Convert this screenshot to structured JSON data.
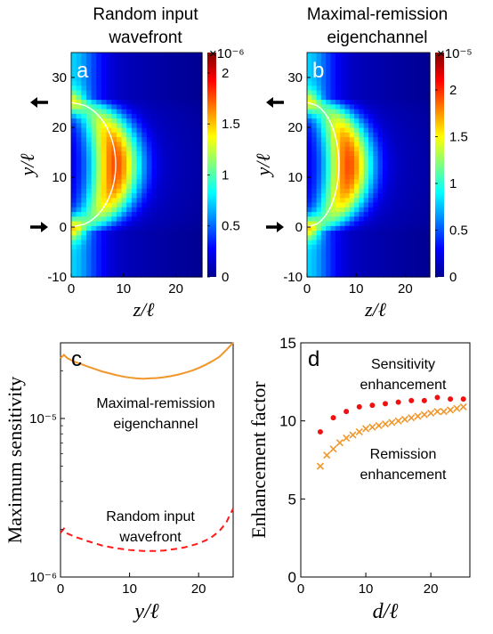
{
  "chart_data": [
    {
      "id": "a",
      "type": "heatmap",
      "panel_label": "a",
      "title": "Random input wavefront",
      "title_lines": [
        "Random input",
        "wavefront"
      ],
      "xlabel": "z/ℓ",
      "ylabel": "y/ℓ",
      "xlim": [
        0,
        25
      ],
      "ylim": [
        -10,
        35
      ],
      "xticks": [
        0,
        10,
        20
      ],
      "yticks": [
        -10,
        0,
        10,
        20,
        30
      ],
      "source_y": 0,
      "detector_y": 25,
      "colorbar": {
        "min": 0,
        "max": 2.2,
        "ticks": [
          0,
          0.5,
          1,
          1.5,
          2
        ],
        "exponent_label": "×10⁻⁶"
      },
      "contour": {
        "z_max": 8.5,
        "y_center": 12.5,
        "y_half": 12.5,
        "style": "solid"
      }
    },
    {
      "id": "b",
      "type": "heatmap",
      "panel_label": "b",
      "title": "Maximal-remission eigenchannel",
      "title_lines": [
        "Maximal-remission",
        "eigenchannel"
      ],
      "xlabel": "z/ℓ",
      "ylabel": "y/ℓ",
      "xlim": [
        0,
        25
      ],
      "ylim": [
        -10,
        35
      ],
      "xticks": [
        0,
        10,
        20
      ],
      "yticks": [
        -10,
        0,
        10,
        20,
        30
      ],
      "source_y": 0,
      "detector_y": 25,
      "colorbar": {
        "min": 0,
        "max": 2.4,
        "ticks": [
          0,
          0.5,
          1,
          1.5,
          2
        ],
        "exponent_label": "×10⁻⁵"
      },
      "contour": {
        "z_max": 6.5,
        "y_center": 12.5,
        "y_half": 12.5,
        "style": "solid"
      }
    },
    {
      "id": "c",
      "type": "line",
      "panel_label": "c",
      "xlabel": "y/ℓ",
      "ylabel": "Maximum sensitivity",
      "xlim": [
        0,
        25
      ],
      "ylim": [
        1e-06,
        3e-05
      ],
      "log_y": true,
      "xticks": [
        0,
        10,
        20
      ],
      "ytick_labels": [
        "10⁻⁶",
        "10⁻⁵"
      ],
      "yticks": [
        1e-06,
        1e-05
      ],
      "series": [
        {
          "name": "Maximal-remission eigenchannel",
          "label_lines": [
            "Maximal-remission",
            "eigenchannel"
          ],
          "color": "#f0962a",
          "dash": "solid",
          "x": [
            0,
            0.5,
            1,
            2,
            3,
            4,
            5,
            6,
            7,
            8,
            9,
            10,
            11,
            12,
            13,
            14,
            15,
            16,
            17,
            18,
            19,
            20,
            21,
            22,
            23,
            24,
            24.5,
            25
          ],
          "y": [
            2.4e-05,
            2.52e-05,
            2.4e-05,
            2.28e-05,
            2.2e-05,
            2.12e-05,
            2.05e-05,
            1.98e-05,
            1.93e-05,
            1.88e-05,
            1.84e-05,
            1.81e-05,
            1.79e-05,
            1.78e-05,
            1.79e-05,
            1.8e-05,
            1.82e-05,
            1.85e-05,
            1.89e-05,
            1.94e-05,
            2e-05,
            2.08e-05,
            2.18e-05,
            2.3e-05,
            2.45e-05,
            2.7e-05,
            2.85e-05,
            3e-05
          ]
        },
        {
          "name": "Random input wavefront",
          "label_lines": [
            "Random input",
            "wavefront"
          ],
          "color": "#ff1a1a",
          "dash": "dashed",
          "x": [
            0,
            0.5,
            1,
            2,
            3,
            4,
            5,
            6,
            7,
            8,
            9,
            10,
            11,
            12,
            13,
            14,
            15,
            16,
            17,
            18,
            19,
            20,
            21,
            22,
            23,
            24,
            24.5,
            25
          ],
          "y": [
            1.9e-06,
            2.02e-06,
            1.88e-06,
            1.8e-06,
            1.74e-06,
            1.68e-06,
            1.63e-06,
            1.58e-06,
            1.55e-06,
            1.52e-06,
            1.5e-06,
            1.48e-06,
            1.47e-06,
            1.46e-06,
            1.46e-06,
            1.46e-06,
            1.47e-06,
            1.49e-06,
            1.51e-06,
            1.54e-06,
            1.58e-06,
            1.63e-06,
            1.7e-06,
            1.8e-06,
            1.95e-06,
            2.2e-06,
            2.45e-06,
            2.7e-06
          ]
        }
      ]
    },
    {
      "id": "d",
      "type": "scatter",
      "panel_label": "d",
      "xlabel": "d/ℓ",
      "ylabel": "Enhancement factor",
      "xlim": [
        0,
        26
      ],
      "ylim": [
        0,
        15
      ],
      "xticks": [
        0,
        10,
        20
      ],
      "yticks": [
        0,
        5,
        10,
        15
      ],
      "series": [
        {
          "name": "Sensitivity enhancement",
          "label_lines": [
            "Sensitivity",
            "enhancement"
          ],
          "marker": "dot",
          "color": "#ee1111",
          "x": [
            3,
            5,
            7,
            9,
            11,
            13,
            15,
            17,
            19,
            21,
            23,
            25
          ],
          "y": [
            9.3,
            10.2,
            10.6,
            10.9,
            11.0,
            11.1,
            11.2,
            11.3,
            11.3,
            11.5,
            11.4,
            11.4
          ]
        },
        {
          "name": "Remission enhancement",
          "label_lines": [
            "Remission",
            "enhancement"
          ],
          "marker": "cross",
          "color": "#f0962a",
          "x": [
            3,
            4,
            5,
            6,
            7,
            8,
            9,
            10,
            11,
            12,
            13,
            14,
            15,
            16,
            17,
            18,
            19,
            20,
            21,
            22,
            23,
            24,
            25
          ],
          "y": [
            7.1,
            7.8,
            8.2,
            8.6,
            8.9,
            9.1,
            9.3,
            9.5,
            9.6,
            9.7,
            9.8,
            9.9,
            10.0,
            10.1,
            10.2,
            10.3,
            10.4,
            10.5,
            10.6,
            10.6,
            10.7,
            10.8,
            10.9
          ]
        }
      ]
    }
  ]
}
